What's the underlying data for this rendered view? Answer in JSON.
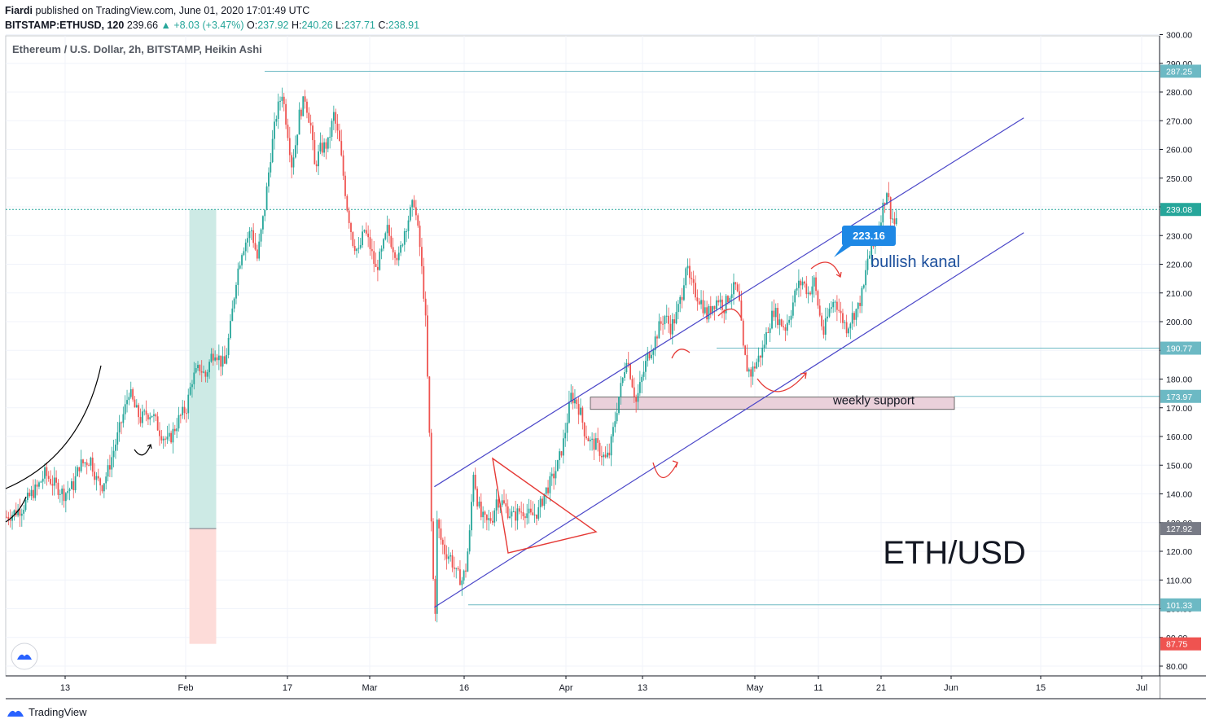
{
  "header": {
    "author": "Fiardi",
    "published_text": "published on TradingView.com, June 01, 2020 17:01:49 UTC",
    "symbol": "BITSTAMP:ETHUSD, 120",
    "last_price": "239.66",
    "change": "▲ +8.03 (+3.47%)",
    "o_label": "O:",
    "o_value": "237.92",
    "h_label": "H:",
    "h_value": "240.26",
    "l_label": "L:",
    "l_value": "237.71",
    "c_label": "C:",
    "c_value": "238.91"
  },
  "footer": {
    "brand": "TradingView"
  },
  "colors": {
    "up": "#26a69a",
    "down": "#ef5350",
    "channel": "#4a46c8",
    "hline": "#6cb9c4",
    "triangle": "#e53935",
    "tag_bg": "#1e88e5",
    "profit_zone": "#cdeae5",
    "loss_zone": "#fddcd9",
    "support_zone": "#ead0da"
  },
  "chart_data": {
    "type": "candlestick",
    "title": "Ethereum / U.S. Dollar, 2h, BITSTAMP, Heikin Ashi",
    "ylim": [
      77,
      301
    ],
    "y_ticks": [
      80,
      90,
      100,
      110,
      120,
      130,
      140,
      150,
      160,
      170,
      180,
      190,
      200,
      210,
      220,
      230,
      240,
      250,
      260,
      270,
      280,
      290,
      300
    ],
    "x_ticks": [
      "13",
      "Feb",
      "17",
      "Mar",
      "16",
      "Apr",
      "13",
      "May",
      "11",
      "21",
      "Jun",
      "15",
      "Jul"
    ],
    "price_tags": [
      {
        "value": 287.25,
        "label": "287.25",
        "kind": "line"
      },
      {
        "value": 239.08,
        "label": "239.08",
        "kind": "current"
      },
      {
        "value": 190.77,
        "label": "190.77",
        "kind": "line"
      },
      {
        "value": 173.97,
        "label": "173.97",
        "kind": "line"
      },
      {
        "value": 127.92,
        "label": "127.92",
        "kind": "grey"
      },
      {
        "value": 101.33,
        "label": "101.33",
        "kind": "line"
      },
      {
        "value": 87.75,
        "label": "87.75",
        "kind": "red"
      }
    ],
    "price_path": [
      [
        0,
        132
      ],
      [
        8,
        135
      ],
      [
        13,
        140
      ],
      [
        16,
        142
      ],
      [
        20,
        147
      ],
      [
        24,
        144
      ],
      [
        30,
        140
      ],
      [
        35,
        143
      ],
      [
        38,
        150
      ],
      [
        44,
        152
      ],
      [
        47,
        145
      ],
      [
        50,
        143
      ],
      [
        53,
        148
      ],
      [
        58,
        160
      ],
      [
        62,
        170
      ],
      [
        64,
        176
      ],
      [
        67,
        170
      ],
      [
        70,
        166
      ],
      [
        73,
        168
      ],
      [
        76,
        168
      ],
      [
        80,
        162
      ],
      [
        84,
        158
      ],
      [
        86,
        160
      ],
      [
        90,
        166
      ],
      [
        94,
        170
      ],
      [
        97,
        180
      ],
      [
        101,
        184
      ],
      [
        104,
        181
      ],
      [
        107,
        188
      ],
      [
        109,
        190
      ],
      [
        112,
        186
      ],
      [
        114,
        185
      ],
      [
        117,
        198
      ],
      [
        120,
        215
      ],
      [
        123,
        225
      ],
      [
        125,
        228
      ],
      [
        128,
        232
      ],
      [
        131,
        222
      ],
      [
        135,
        240
      ],
      [
        138,
        258
      ],
      [
        141,
        272
      ],
      [
        144,
        280
      ],
      [
        147,
        266
      ],
      [
        149,
        255
      ],
      [
        151,
        262
      ],
      [
        153,
        272
      ],
      [
        156,
        278
      ],
      [
        159,
        268
      ],
      [
        161,
        254
      ],
      [
        164,
        260
      ],
      [
        168,
        262
      ],
      [
        171,
        272
      ],
      [
        174,
        262
      ],
      [
        178,
        240
      ],
      [
        181,
        228
      ],
      [
        184,
        224
      ],
      [
        187,
        232
      ],
      [
        190,
        226
      ],
      [
        193,
        218
      ],
      [
        196,
        224
      ],
      [
        199,
        232
      ],
      [
        202,
        226
      ],
      [
        205,
        222
      ],
      [
        208,
        232
      ],
      [
        211,
        238
      ],
      [
        213,
        242
      ],
      [
        216,
        226
      ],
      [
        218,
        210
      ],
      [
        219,
        200
      ],
      [
        220,
        180
      ],
      [
        221,
        160
      ],
      [
        222,
        130
      ],
      [
        223,
        110
      ],
      [
        224,
        100
      ],
      [
        225,
        130
      ],
      [
        227,
        124
      ],
      [
        229,
        120
      ],
      [
        232,
        118
      ],
      [
        235,
        112
      ],
      [
        238,
        110
      ],
      [
        240,
        114
      ],
      [
        242,
        126
      ],
      [
        244,
        148
      ],
      [
        246,
        138
      ],
      [
        248,
        132
      ],
      [
        251,
        130
      ],
      [
        254,
        132
      ],
      [
        256,
        138
      ],
      [
        259,
        137
      ],
      [
        262,
        134
      ],
      [
        265,
        132
      ],
      [
        268,
        134
      ],
      [
        271,
        134
      ],
      [
        274,
        132
      ],
      [
        278,
        134
      ],
      [
        281,
        140
      ],
      [
        285,
        145
      ],
      [
        288,
        150
      ],
      [
        291,
        158
      ],
      [
        293,
        166
      ],
      [
        295,
        174
      ],
      [
        298,
        172
      ],
      [
        300,
        168
      ],
      [
        302,
        162
      ],
      [
        305,
        158
      ],
      [
        308,
        157
      ],
      [
        311,
        154
      ],
      [
        313,
        152
      ],
      [
        315,
        154
      ],
      [
        318,
        166
      ],
      [
        320,
        174
      ],
      [
        322,
        180
      ],
      [
        324,
        188
      ],
      [
        326,
        182
      ],
      [
        329,
        172
      ],
      [
        332,
        180
      ],
      [
        335,
        188
      ],
      [
        338,
        192
      ],
      [
        341,
        198
      ],
      [
        344,
        202
      ],
      [
        347,
        198
      ],
      [
        350,
        202
      ],
      [
        353,
        210
      ],
      [
        355,
        220
      ],
      [
        357,
        214
      ],
      [
        360,
        210
      ],
      [
        363,
        207
      ],
      [
        366,
        202
      ],
      [
        369,
        206
      ],
      [
        372,
        208
      ],
      [
        375,
        205
      ],
      [
        378,
        210
      ],
      [
        381,
        212
      ],
      [
        383,
        206
      ],
      [
        385,
        190
      ],
      [
        387,
        184
      ],
      [
        389,
        182
      ],
      [
        392,
        186
      ],
      [
        395,
        190
      ],
      [
        398,
        198
      ],
      [
        401,
        204
      ],
      [
        404,
        200
      ],
      [
        407,
        198
      ],
      [
        410,
        204
      ],
      [
        413,
        212
      ],
      [
        416,
        214
      ],
      [
        419,
        210
      ],
      [
        422,
        214
      ],
      [
        425,
        202
      ],
      [
        427,
        196
      ],
      [
        430,
        204
      ],
      [
        433,
        208
      ],
      [
        436,
        202
      ],
      [
        439,
        198
      ],
      [
        442,
        202
      ],
      [
        445,
        205
      ],
      [
        448,
        212
      ],
      [
        450,
        222
      ],
      [
        453,
        226
      ],
      [
        456,
        234
      ],
      [
        458,
        240
      ],
      [
        460,
        246
      ],
      [
        462,
        238
      ],
      [
        464,
        234
      ],
      [
        466,
        238
      ]
    ],
    "channel": {
      "upper": [
        [
          224,
          142.5
        ],
        [
          532,
          271
        ]
      ],
      "lower": [
        [
          224,
          100.5
        ],
        [
          532,
          231
        ]
      ]
    },
    "horizontal_lines": [
      {
        "value": 287.25,
        "from_bar": 135
      },
      {
        "value": 190.77,
        "from_bar": 355
      },
      {
        "value": 173.97,
        "from_bar": 480
      },
      {
        "value": 101.33,
        "from_bar": 224
      }
    ],
    "support_zone": {
      "label": "weekly support",
      "x_from_bar": 297,
      "x_to_bar": 481,
      "y_top": 174,
      "y_bottom": 170
    },
    "long_position": {
      "x_from_bar": 96,
      "x_to_bar": 110,
      "entry": 127.92,
      "target": 239.08,
      "stop": 87.75
    },
    "annotations": [
      {
        "type": "callout",
        "text": "223.16"
      },
      {
        "type": "text",
        "text": "bullish kanal"
      },
      {
        "type": "text",
        "text": "ETH/USD"
      }
    ]
  }
}
